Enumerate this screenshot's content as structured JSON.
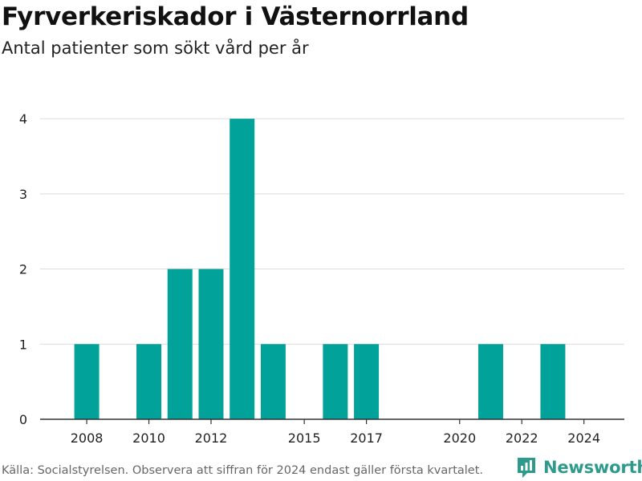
{
  "header": {
    "title": "Fyrverkeriskador i Västernorrland",
    "subtitle": "Antal patienter som sökt vård per år"
  },
  "footer": {
    "source": "Källa: Socialstyrelsen. Observera att siffran för 2024 endast gäller första kvartalet.",
    "brand": "Newsworthy"
  },
  "colors": {
    "bar": "#00a29a",
    "grid": "#dcdcdc",
    "axis": "#333333",
    "brand": "#2e9a8c"
  },
  "icons": {
    "brand_logo": "newsworthy-chart-bubble-icon"
  },
  "chart_data": {
    "type": "bar",
    "x": [
      2007,
      2008,
      2009,
      2010,
      2011,
      2012,
      2013,
      2014,
      2015,
      2016,
      2017,
      2018,
      2019,
      2020,
      2021,
      2022,
      2023,
      2024
    ],
    "values": [
      0,
      1,
      0,
      1,
      2,
      2,
      4,
      1,
      0,
      1,
      1,
      0,
      0,
      0,
      1,
      0,
      1,
      0
    ],
    "xticks": [
      2008,
      2010,
      2012,
      2015,
      2017,
      2020,
      2022,
      2024
    ],
    "yticks": [
      0,
      1,
      2,
      3,
      4
    ],
    "ylim": [
      0,
      4
    ],
    "xlim": [
      2006.5,
      2025.3
    ],
    "grid": true,
    "title": "Fyrverkeriskador i Västernorrland",
    "xlabel": "",
    "ylabel": ""
  }
}
